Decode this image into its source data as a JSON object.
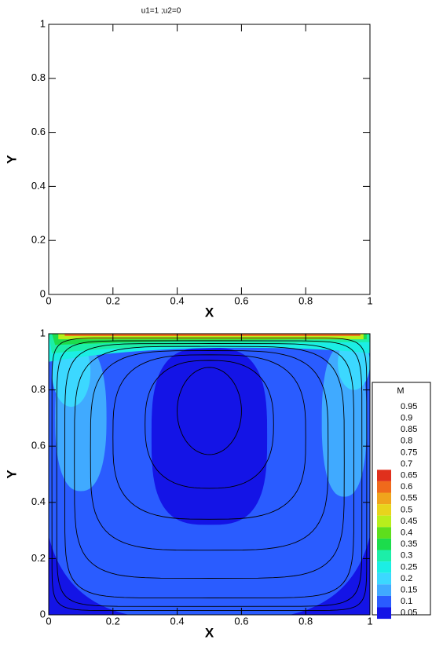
{
  "chart_data": [
    {
      "type": "axes",
      "title": "u1=1 ;u2=0",
      "xlabel": "X",
      "ylabel": "Y",
      "xlim": [
        0,
        1
      ],
      "ylim": [
        0,
        1
      ],
      "xticks": [
        0,
        0.2,
        0.4,
        0.6,
        0.8,
        1
      ],
      "yticks": [
        0,
        0.2,
        0.4,
        0.6,
        0.8,
        1
      ]
    },
    {
      "type": "contour",
      "xlabel": "X",
      "ylabel": "Y",
      "xlim": [
        0,
        1
      ],
      "ylim": [
        0,
        1
      ],
      "xticks": [
        0,
        0.2,
        0.4,
        0.6,
        0.8,
        1
      ],
      "yticks": [
        0,
        0.2,
        0.4,
        0.6,
        0.8,
        1
      ],
      "legend": {
        "title": "M",
        "levels": [
          0.95,
          0.9,
          0.85,
          0.8,
          0.75,
          0.7,
          0.65,
          0.6,
          0.55,
          0.5,
          0.45,
          0.4,
          0.35,
          0.3,
          0.25,
          0.2,
          0.15,
          0.1,
          0.05
        ],
        "colors": [
          null,
          null,
          null,
          null,
          null,
          null,
          "#e0301c",
          "#f06a1c",
          "#f0a41c",
          "#e8d41c",
          "#b8ee1c",
          "#5ede1c",
          "#1cdc4c",
          "#1ceea8",
          "#1ceee4",
          "#3cd8ff",
          "#40aaff",
          "#2a5cff",
          "#1414e6"
        ]
      }
    }
  ]
}
